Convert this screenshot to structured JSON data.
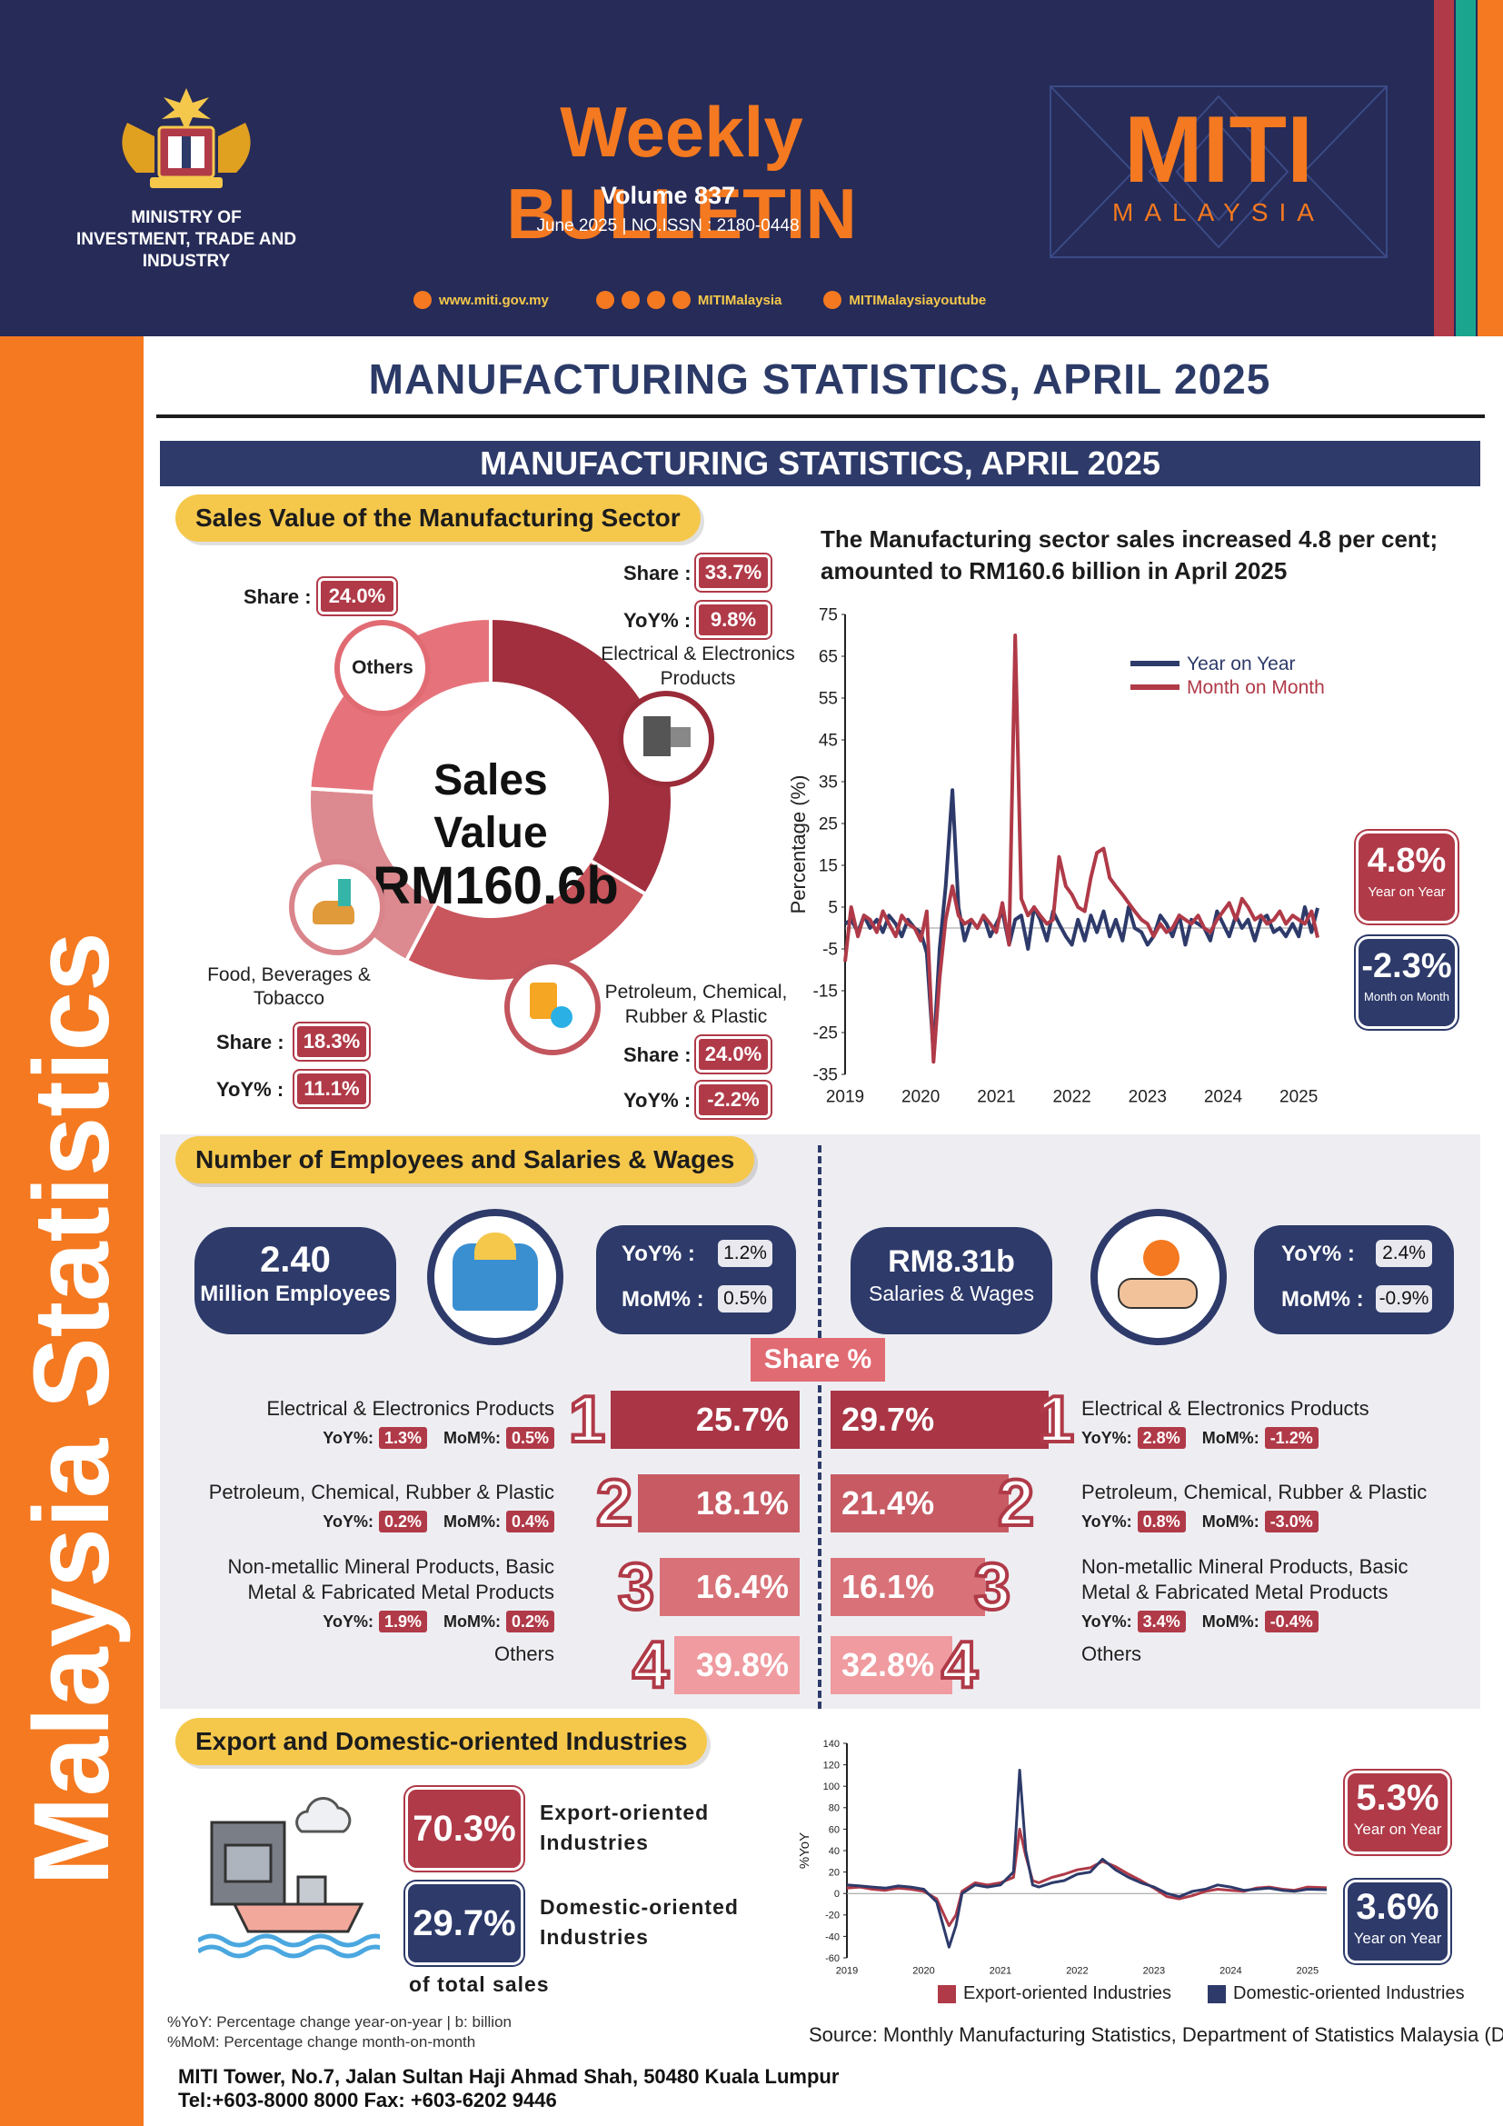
{
  "header": {
    "ministry_line1": "MINISTRY OF",
    "ministry_line2": "INVESTMENT, TRADE AND INDUSTRY",
    "title": "Weekly BULLETIN",
    "volume": "Volume 837",
    "issue": "June 2025 | NO.ISSN : 2180-0448",
    "website": "www.miti.gov.my",
    "social_handle": "MITIMalaysia",
    "youtube_handle": "MITIMalaysiayoutube",
    "brand_name": "MITI",
    "brand_sub": "MALAYSIA"
  },
  "sidebar_title": "Malaysia Statistics",
  "page_title": "MANUFACTURING STATISTICS, APRIL 2025",
  "section_banner": "MANUFACTURING STATISTICS, APRIL 2025",
  "sales": {
    "pill": "Sales Value of the Manufacturing Sector",
    "center_line1": "Sales Value",
    "center_line2": "RM160.6b",
    "share_label": "Share :",
    "yoy_label": "YoY% :",
    "others": {
      "name": "Others",
      "share": "24.0%"
    },
    "ee": {
      "name_line1": "Electrical & Electronics",
      "name_line2": "Products",
      "share": "33.7%",
      "yoy": "9.8%"
    },
    "petro": {
      "name_line1": "Petroleum, Chemical,",
      "name_line2": "Rubber & Plastic",
      "share": "24.0%",
      "yoy": "-2.2%"
    },
    "food": {
      "name_line1": "Food, Beverages &",
      "name_line2": "Tobacco",
      "share": "18.3%",
      "yoy": "11.1%"
    }
  },
  "line_chart": {
    "headline_line1": "The Manufacturing sector sales increased 4.8 per cent;",
    "headline_line2": "amounted to RM160.6 billion in April 2025",
    "yoy_value": "4.8%",
    "yoy_caption": "Year on Year",
    "mom_value": "-2.3%",
    "mom_caption": "Month on Month"
  },
  "employees": {
    "pill": "Number of Employees and Salaries & Wages",
    "emp_value": "2.40",
    "emp_caption": "Million Employees",
    "emp_yoy_label": "YoY%  :",
    "emp_yoy": "1.2%",
    "emp_mom_label": "MoM% :",
    "emp_mom": "0.5%",
    "sal_value": "RM8.31b",
    "sal_caption": "Salaries & Wages",
    "sal_yoy_label": "YoY%  :",
    "sal_yoy": "2.4%",
    "sal_mom_label": "MoM% :",
    "sal_mom": "-0.9%",
    "share_header": "Share %",
    "yoy_tag": "YoY%:",
    "mom_tag": "MoM%:",
    "left_rows": [
      {
        "rank": "1",
        "name_line1": "Electrical & Electronics Products",
        "name_line2": "",
        "yoy": "1.3%",
        "mom": "0.5%",
        "share": "25.7%"
      },
      {
        "rank": "2",
        "name_line1": "Petroleum, Chemical, Rubber & Plastic",
        "name_line2": "",
        "yoy": "0.2%",
        "mom": "0.4%",
        "share": "18.1%"
      },
      {
        "rank": "3",
        "name_line1": "Non-metallic Mineral Products, Basic",
        "name_line2": "Metal & Fabricated Metal Products",
        "yoy": "1.9%",
        "mom": "0.2%",
        "share": "16.4%"
      },
      {
        "rank": "4",
        "name_line1": "Others",
        "name_line2": "",
        "share": "39.8%"
      }
    ],
    "right_rows": [
      {
        "rank": "1",
        "name_line1": "Electrical & Electronics Products",
        "name_line2": "",
        "yoy": "2.8%",
        "mom": "-1.2%",
        "share": "29.7%"
      },
      {
        "rank": "2",
        "name_line1": "Petroleum, Chemical, Rubber & Plastic",
        "name_line2": "",
        "yoy": "0.8%",
        "mom": "-3.0%",
        "share": "21.4%"
      },
      {
        "rank": "3",
        "name_line1": "Non-metallic Mineral Products, Basic",
        "name_line2": "Metal & Fabricated Metal Products",
        "yoy": "3.4%",
        "mom": "-0.4%",
        "share": "16.1%"
      },
      {
        "rank": "4",
        "name_line1": "Others",
        "name_line2": "",
        "share": "32.8%"
      }
    ]
  },
  "export": {
    "pill": "Export and Domestic-oriented Industries",
    "export_pct": "70.3%",
    "export_line1": "Export-oriented",
    "export_line2": "Industries",
    "domestic_pct": "29.7%",
    "domestic_line1": "Domestic-oriented",
    "domestic_line2": "Industries",
    "of_total": "of total sales",
    "chart_export_yoy": "5.3%",
    "chart_export_caption": "Year on Year",
    "chart_domestic_yoy": "3.6%",
    "chart_domestic_caption": "Year on Year"
  },
  "footnotes": {
    "line1": "%YoY: Percentage change year-on-year | b: billion",
    "line2": "%MoM: Percentage change month-on-month",
    "source": "Source: Monthly Manufacturing Statistics, Department of Statistics Malaysia (DOSM)",
    "address": "MITI Tower, No.7, Jalan Sultan Haji Ahmad Shah, 50480 Kuala Lumpur",
    "contact": "Tel:+603-8000 8000 Fax: +603-6202 9446"
  },
  "colors": {
    "navy": "#2d3a6a",
    "red": "#b03a48",
    "orange": "#f47920",
    "yellow": "#f5c84c"
  },
  "chart_data": [
    {
      "type": "line",
      "title": "",
      "xlabel": "",
      "ylabel": "Percentage (%)",
      "ylim": [
        -35,
        75
      ],
      "yticks": [
        75,
        65,
        55,
        45,
        35,
        25,
        15,
        5,
        -5,
        -15,
        -25,
        -35
      ],
      "x_tick_labels": [
        "2019",
        "2020",
        "2021",
        "2022",
        "2023",
        "2024",
        "2025"
      ],
      "x": [
        2019.0,
        2019.08,
        2019.17,
        2019.25,
        2019.33,
        2019.42,
        2019.5,
        2019.58,
        2019.67,
        2019.75,
        2019.83,
        2019.92,
        2020.0,
        2020.08,
        2020.17,
        2020.25,
        2020.33,
        2020.42,
        2020.5,
        2020.58,
        2020.67,
        2020.75,
        2020.83,
        2020.92,
        2021.0,
        2021.08,
        2021.17,
        2021.25,
        2021.33,
        2021.42,
        2021.5,
        2021.58,
        2021.67,
        2021.75,
        2021.83,
        2021.92,
        2022.0,
        2022.08,
        2022.17,
        2022.25,
        2022.33,
        2022.42,
        2022.5,
        2022.58,
        2022.67,
        2022.75,
        2022.83,
        2022.92,
        2023.0,
        2023.08,
        2023.17,
        2023.25,
        2023.33,
        2023.42,
        2023.5,
        2023.58,
        2023.67,
        2023.75,
        2023.83,
        2023.92,
        2024.0,
        2024.08,
        2024.17,
        2024.25,
        2024.33,
        2024.42,
        2024.5,
        2024.58,
        2024.67,
        2024.75,
        2024.83,
        2024.92,
        2025.0,
        2025.08,
        2025.17,
        2025.25
      ],
      "legend": "top-right",
      "series": [
        {
          "name": "Year on Year",
          "color": "#2d3a6a",
          "values": [
            1,
            2,
            -1,
            3,
            0,
            2,
            -1,
            3,
            1,
            -2,
            2,
            0,
            -1,
            -6,
            -30,
            -5,
            10,
            33,
            5,
            -3,
            2,
            0,
            3,
            -2,
            1,
            4,
            -4,
            2,
            3,
            -5,
            5,
            2,
            -3,
            4,
            1,
            -2,
            -4,
            2,
            -3,
            3,
            -1,
            4,
            -2,
            2,
            -3,
            5,
            0,
            -1,
            -4,
            -2,
            3,
            1,
            -2,
            3,
            -4,
            2,
            1,
            0,
            -3,
            4,
            1,
            -2,
            3,
            0,
            2,
            -3,
            2,
            3,
            -1,
            0,
            -2,
            1,
            -2,
            5,
            -1,
            4.8
          ]
        },
        {
          "name": "Month on Month",
          "color": "#b03a48",
          "values": [
            -8,
            5,
            -2,
            3,
            2,
            -1,
            4,
            1,
            -2,
            3,
            1,
            0,
            -3,
            4,
            -32,
            -12,
            2,
            10,
            3,
            1,
            2,
            0,
            3,
            1,
            -1,
            6,
            -4,
            70,
            7,
            3,
            5,
            3,
            1,
            2,
            17,
            10,
            8,
            5,
            4,
            12,
            18,
            19,
            12,
            10,
            8,
            6,
            4,
            2,
            1,
            -2,
            1,
            -1,
            0,
            3,
            2,
            1,
            3,
            0,
            -1,
            2,
            4,
            6,
            2,
            7,
            5,
            2,
            3,
            1,
            2,
            4,
            1,
            3,
            2,
            1,
            4,
            -2.3
          ]
        }
      ]
    },
    {
      "type": "line",
      "title": "",
      "xlabel": "",
      "ylabel": "%YoY",
      "ylim": [
        -60,
        140
      ],
      "yticks": [
        140,
        120,
        100,
        80,
        60,
        40,
        20,
        0,
        -20,
        -40,
        -60
      ],
      "x_tick_labels": [
        "2019",
        "2020",
        "2021",
        "2022",
        "2023",
        "2024",
        "2025"
      ],
      "x": [
        2019.0,
        2019.17,
        2019.33,
        2019.5,
        2019.67,
        2019.83,
        2020.0,
        2020.17,
        2020.33,
        2020.42,
        2020.5,
        2020.67,
        2020.83,
        2021.0,
        2021.17,
        2021.25,
        2021.33,
        2021.42,
        2021.5,
        2021.67,
        2021.83,
        2022.0,
        2022.17,
        2022.33,
        2022.5,
        2022.67,
        2022.83,
        2023.0,
        2023.17,
        2023.33,
        2023.5,
        2023.67,
        2023.83,
        2024.0,
        2024.17,
        2024.33,
        2024.5,
        2024.67,
        2024.83,
        2025.0,
        2025.25
      ],
      "legend": "bottom",
      "series": [
        {
          "name": "Export-oriented Industries",
          "color": "#b03a48",
          "values": [
            5,
            6,
            4,
            3,
            5,
            4,
            2,
            -5,
            -30,
            -20,
            2,
            10,
            8,
            10,
            15,
            60,
            35,
            12,
            10,
            15,
            18,
            22,
            24,
            30,
            25,
            18,
            12,
            5,
            -3,
            -5,
            -2,
            2,
            4,
            3,
            2,
            5,
            6,
            4,
            3,
            6,
            5.3
          ]
        },
        {
          "name": "Domestic-oriented Industries",
          "color": "#2d3a6a",
          "values": [
            8,
            7,
            6,
            5,
            7,
            6,
            4,
            -8,
            -50,
            -30,
            0,
            8,
            6,
            8,
            20,
            115,
            40,
            8,
            6,
            10,
            12,
            18,
            20,
            32,
            22,
            15,
            10,
            6,
            0,
            -3,
            2,
            4,
            8,
            6,
            3,
            4,
            5,
            3,
            2,
            4,
            3.6
          ]
        }
      ]
    }
  ]
}
